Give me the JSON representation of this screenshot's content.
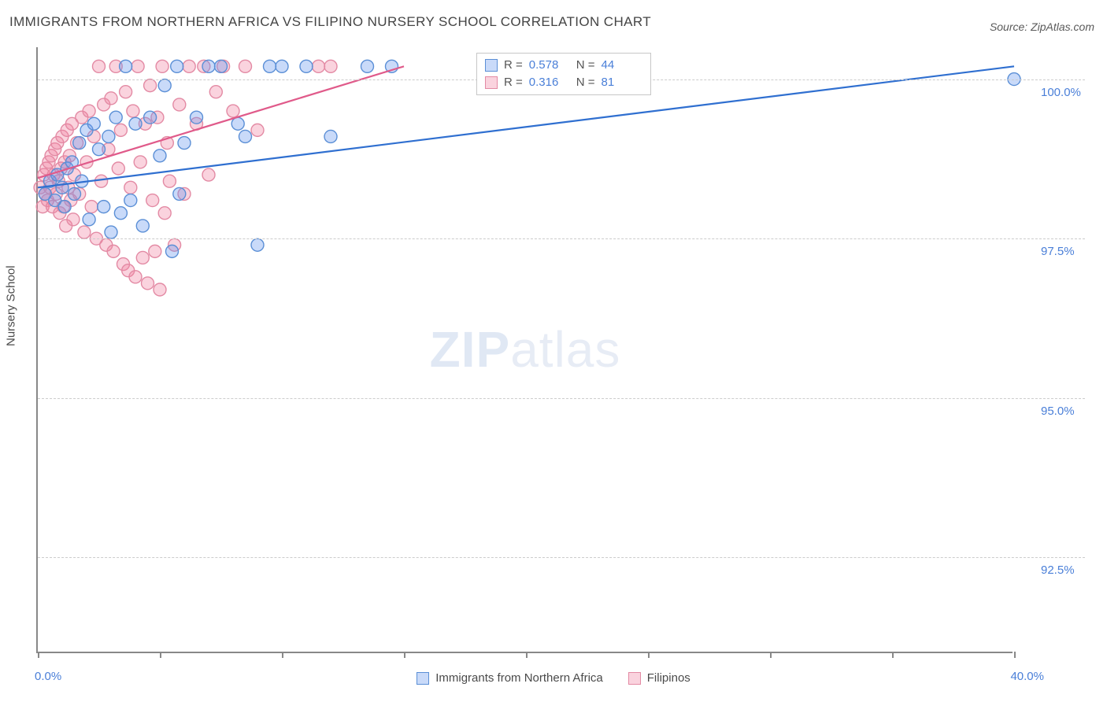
{
  "title": "IMMIGRANTS FROM NORTHERN AFRICA VS FILIPINO NURSERY SCHOOL CORRELATION CHART",
  "source_label": "Source:",
  "source_name": "ZipAtlas.com",
  "ylabel": "Nursery School",
  "watermark_a": "ZIP",
  "watermark_b": "atlas",
  "chart": {
    "type": "scatter-with-trendlines",
    "xlim": [
      0.0,
      40.0
    ],
    "ylim": [
      91.0,
      100.5
    ],
    "ytick_positions": [
      92.5,
      95.0,
      97.5,
      100.0
    ],
    "ytick_labels": [
      "92.5%",
      "95.0%",
      "97.5%",
      "100.0%"
    ],
    "xmin_label": "0.0%",
    "xmax_label": "40.0%",
    "xtick_positions": [
      0,
      5,
      10,
      15,
      20,
      25,
      30,
      35,
      40
    ],
    "grid_color": "#cccccc",
    "axis_color": "#888888",
    "background_color": "#ffffff",
    "marker_radius": 8,
    "marker_stroke_width": 1.4,
    "trend_line_width": 2.2,
    "series": [
      {
        "name": "Immigrants from Northern Africa",
        "color_fill": "rgba(100,149,237,0.35)",
        "color_stroke": "#5b8fd6",
        "trend_color": "#2f6fd0",
        "r_value": "0.578",
        "n_value": "44",
        "trend": {
          "x1": 0.0,
          "y1": 98.3,
          "x2": 40.0,
          "y2": 100.2
        },
        "points": [
          [
            0.3,
            98.2
          ],
          [
            0.5,
            98.4
          ],
          [
            0.7,
            98.1
          ],
          [
            0.8,
            98.5
          ],
          [
            1.0,
            98.3
          ],
          [
            1.1,
            98.0
          ],
          [
            1.2,
            98.6
          ],
          [
            1.4,
            98.7
          ],
          [
            1.5,
            98.2
          ],
          [
            1.7,
            99.0
          ],
          [
            1.8,
            98.4
          ],
          [
            2.0,
            99.2
          ],
          [
            2.1,
            97.8
          ],
          [
            2.3,
            99.3
          ],
          [
            2.5,
            98.9
          ],
          [
            2.7,
            98.0
          ],
          [
            2.9,
            99.1
          ],
          [
            3.0,
            97.6
          ],
          [
            3.2,
            99.4
          ],
          [
            3.4,
            97.9
          ],
          [
            3.6,
            100.2
          ],
          [
            3.8,
            98.1
          ],
          [
            4.0,
            99.3
          ],
          [
            4.3,
            97.7
          ],
          [
            4.6,
            99.4
          ],
          [
            5.0,
            98.8
          ],
          [
            5.2,
            99.9
          ],
          [
            5.5,
            97.3
          ],
          [
            5.7,
            100.2
          ],
          [
            5.8,
            98.2
          ],
          [
            6.0,
            99.0
          ],
          [
            6.5,
            99.4
          ],
          [
            7.0,
            100.2
          ],
          [
            7.5,
            100.2
          ],
          [
            8.2,
            99.3
          ],
          [
            8.5,
            99.1
          ],
          [
            9.0,
            97.4
          ],
          [
            9.5,
            100.2
          ],
          [
            10.0,
            100.2
          ],
          [
            11.0,
            100.2
          ],
          [
            12.0,
            99.1
          ],
          [
            13.5,
            100.2
          ],
          [
            14.5,
            100.2
          ],
          [
            40.0,
            100.0
          ]
        ]
      },
      {
        "name": "Filipinos",
        "color_fill": "rgba(240,128,160,0.35)",
        "color_stroke": "#e38aa4",
        "trend_color": "#e05a8a",
        "r_value": "0.316",
        "n_value": "81",
        "trend": {
          "x1": 0.0,
          "y1": 98.45,
          "x2": 15.0,
          "y2": 100.2
        },
        "points": [
          [
            0.1,
            98.3
          ],
          [
            0.2,
            98.0
          ],
          [
            0.25,
            98.5
          ],
          [
            0.3,
            98.2
          ],
          [
            0.35,
            98.6
          ],
          [
            0.4,
            98.1
          ],
          [
            0.45,
            98.7
          ],
          [
            0.5,
            98.3
          ],
          [
            0.55,
            98.8
          ],
          [
            0.6,
            98.0
          ],
          [
            0.65,
            98.5
          ],
          [
            0.7,
            98.9
          ],
          [
            0.75,
            98.2
          ],
          [
            0.8,
            99.0
          ],
          [
            0.85,
            98.4
          ],
          [
            0.9,
            97.9
          ],
          [
            0.95,
            98.6
          ],
          [
            1.0,
            99.1
          ],
          [
            1.05,
            98.0
          ],
          [
            1.1,
            98.7
          ],
          [
            1.15,
            97.7
          ],
          [
            1.2,
            99.2
          ],
          [
            1.25,
            98.3
          ],
          [
            1.3,
            98.8
          ],
          [
            1.35,
            98.1
          ],
          [
            1.4,
            99.3
          ],
          [
            1.45,
            97.8
          ],
          [
            1.5,
            98.5
          ],
          [
            1.6,
            99.0
          ],
          [
            1.7,
            98.2
          ],
          [
            1.8,
            99.4
          ],
          [
            1.9,
            97.6
          ],
          [
            2.0,
            98.7
          ],
          [
            2.1,
            99.5
          ],
          [
            2.2,
            98.0
          ],
          [
            2.3,
            99.1
          ],
          [
            2.4,
            97.5
          ],
          [
            2.5,
            100.2
          ],
          [
            2.6,
            98.4
          ],
          [
            2.7,
            99.6
          ],
          [
            2.8,
            97.4
          ],
          [
            2.9,
            98.9
          ],
          [
            3.0,
            99.7
          ],
          [
            3.1,
            97.3
          ],
          [
            3.2,
            100.2
          ],
          [
            3.3,
            98.6
          ],
          [
            3.4,
            99.2
          ],
          [
            3.5,
            97.1
          ],
          [
            3.6,
            99.8
          ],
          [
            3.7,
            97.0
          ],
          [
            3.8,
            98.3
          ],
          [
            3.9,
            99.5
          ],
          [
            4.0,
            96.9
          ],
          [
            4.1,
            100.2
          ],
          [
            4.2,
            98.7
          ],
          [
            4.3,
            97.2
          ],
          [
            4.4,
            99.3
          ],
          [
            4.5,
            96.8
          ],
          [
            4.6,
            99.9
          ],
          [
            4.7,
            98.1
          ],
          [
            4.8,
            97.3
          ],
          [
            4.9,
            99.4
          ],
          [
            5.0,
            96.7
          ],
          [
            5.1,
            100.2
          ],
          [
            5.2,
            97.9
          ],
          [
            5.3,
            99.0
          ],
          [
            5.4,
            98.4
          ],
          [
            5.6,
            97.4
          ],
          [
            5.8,
            99.6
          ],
          [
            6.0,
            98.2
          ],
          [
            6.2,
            100.2
          ],
          [
            6.5,
            99.3
          ],
          [
            6.8,
            100.2
          ],
          [
            7.0,
            98.5
          ],
          [
            7.3,
            99.8
          ],
          [
            7.6,
            100.2
          ],
          [
            8.0,
            99.5
          ],
          [
            8.5,
            100.2
          ],
          [
            9.0,
            99.2
          ],
          [
            11.5,
            100.2
          ],
          [
            12.0,
            100.2
          ]
        ]
      }
    ]
  },
  "stats_box": {
    "rows": [
      {
        "swatch": "blue",
        "r_label": "R =",
        "r": "0.578",
        "n_label": "N =",
        "n": "44"
      },
      {
        "swatch": "pink",
        "r_label": "R =",
        "r": "0.316",
        "n_label": "N =",
        "n": "81"
      }
    ]
  },
  "bottom_legend": {
    "items": [
      {
        "swatch": "blue",
        "label": "Immigrants from Northern Africa"
      },
      {
        "swatch": "pink",
        "label": "Filipinos"
      }
    ]
  }
}
